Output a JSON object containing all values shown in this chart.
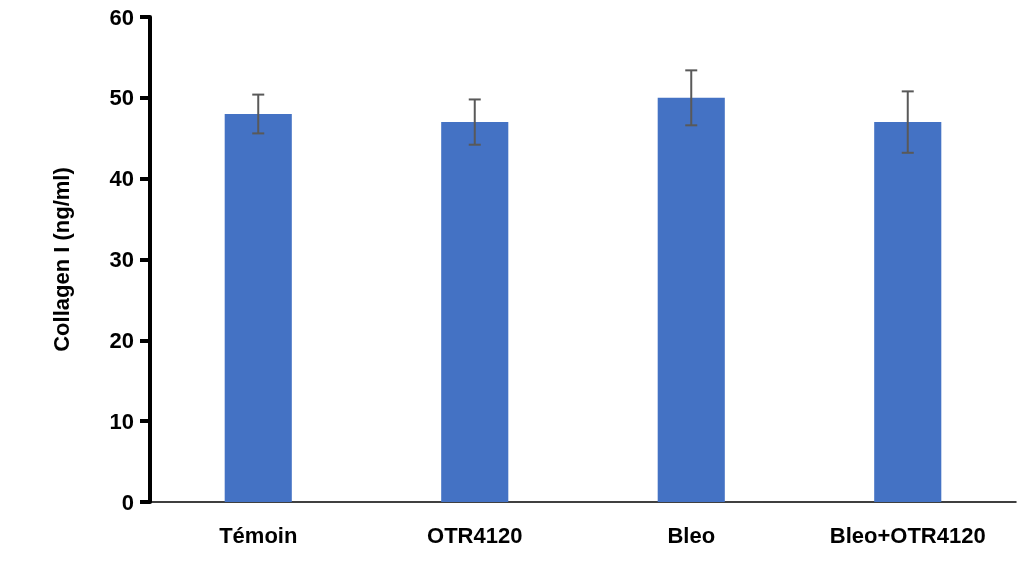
{
  "chart_data": {
    "type": "bar",
    "ylabel": "Collagen I (ng/ml)",
    "categories": [
      "Témoin",
      "OTR4120",
      "Bleo",
      "Bleo+OTR4120"
    ],
    "values": [
      48,
      47,
      50,
      47
    ],
    "errors": [
      2.4,
      2.8,
      3.4,
      3.8
    ],
    "color": "#4472c4",
    "ylim": [
      0,
      60
    ],
    "yticks": [
      0,
      10,
      20,
      30,
      40,
      50,
      60
    ],
    "grid": false
  }
}
